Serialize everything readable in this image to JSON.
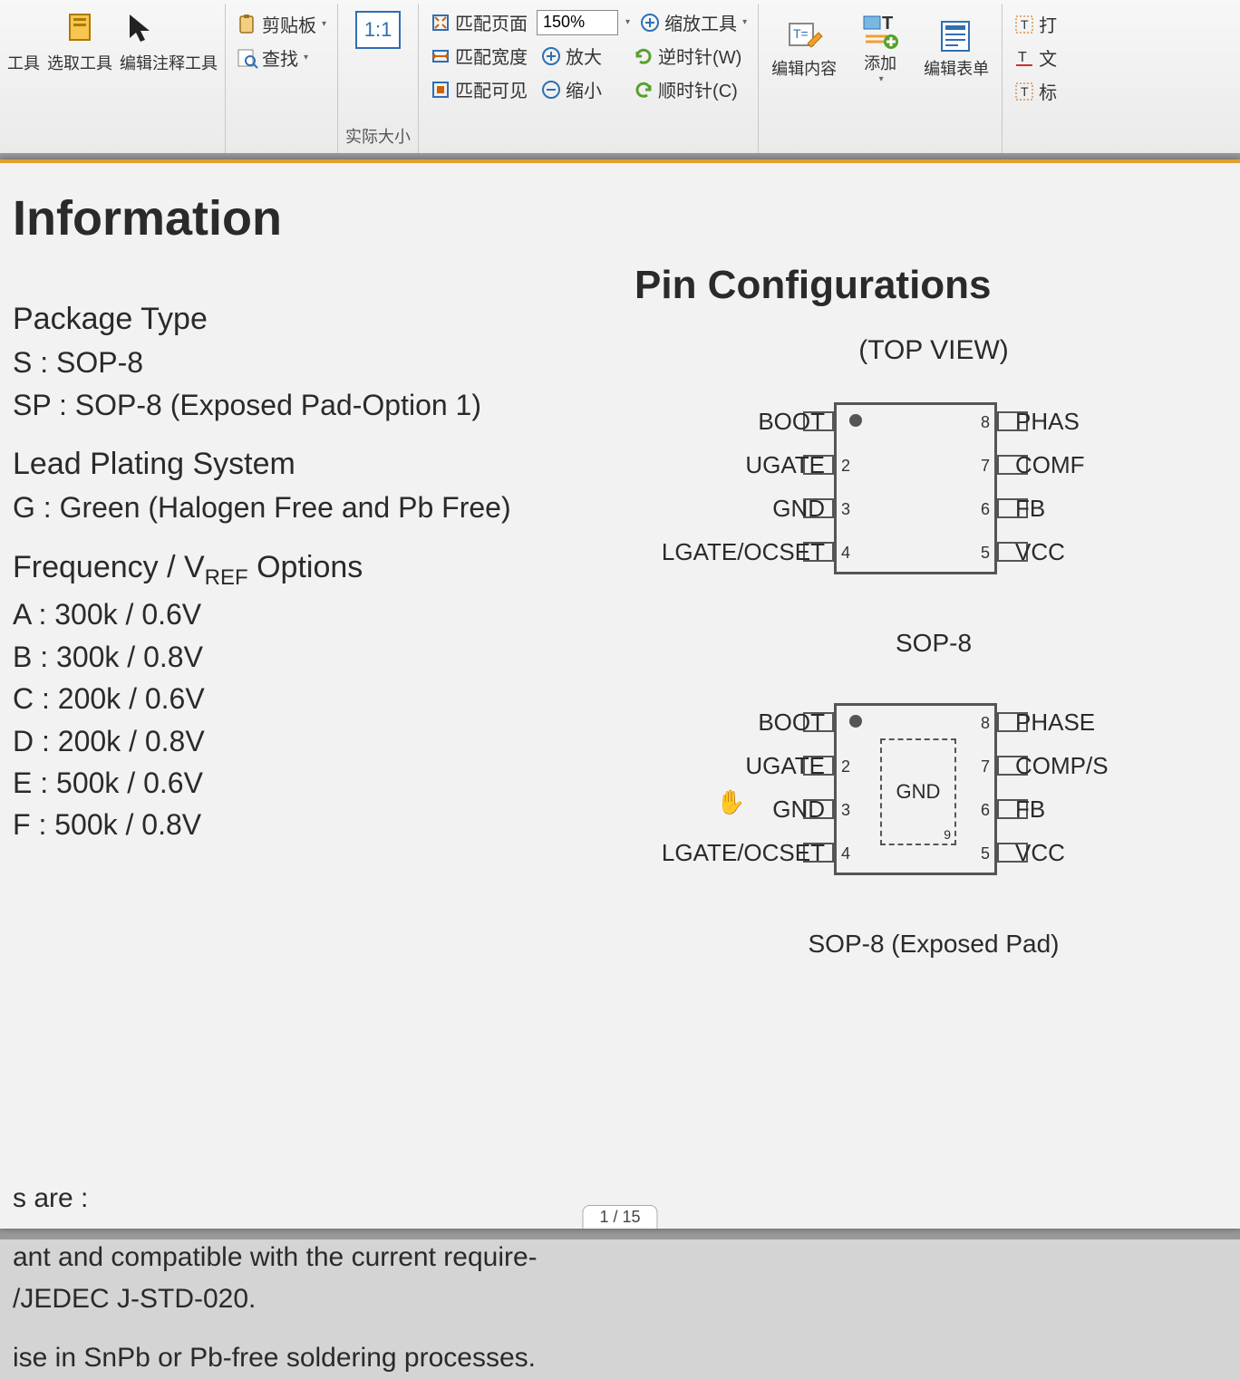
{
  "toolbar": {
    "group_tools_labels": [
      "工具",
      "选取工具",
      "编辑注释工具"
    ],
    "clipboard": {
      "label": "剪贴板",
      "find_label": "查找"
    },
    "actual_size_group": "实际大小",
    "ratio_label": "1:1",
    "fit_page_label": "匹配页面",
    "fit_width_label": "匹配宽度",
    "fit_visible_label": "匹配可见",
    "zoom_value": "150%",
    "zoom_tools_label": "缩放工具",
    "zoom_in_label": "放大",
    "zoom_out_label": "缩小",
    "rotate_ccw_label": "逆时针(W)",
    "rotate_cw_label": "顺时针(C)",
    "edit_content_label": "编辑内容",
    "add_label": "添加",
    "edit_form_label": "编辑表单",
    "right_items": [
      "打",
      "文",
      "标"
    ]
  },
  "doc": {
    "title": "Information",
    "package_type_hdr": "Package Type",
    "pkg_s": "S : SOP-8",
    "pkg_sp": "SP : SOP-8 (Exposed Pad-Option 1)",
    "lead_hdr": "Lead Plating System",
    "lead_g": "G : Green (Halogen Free and Pb Free)",
    "freq_hdr_a": "Frequency / V",
    "freq_hdr_sub": "REF",
    "freq_hdr_b": " Options",
    "opt_a": "A : 300k / 0.6V",
    "opt_b": "B : 300k / 0.8V",
    "opt_c": "C : 200k / 0.6V",
    "opt_d": "D : 200k / 0.8V",
    "opt_e": "E : 500k / 0.6V",
    "opt_f": "F : 500k / 0.8V",
    "foot1": "s are :",
    "foot2": "ant and compatible with the current require-",
    "foot3": "/JEDEC J-STD-020.",
    "foot4": "ise in SnPb or Pb-free soldering processes.",
    "pin_conf_title": "Pin Configurations",
    "top_view": "(TOP VIEW)",
    "chip1": {
      "left_labels": [
        "BOOT",
        "UGATE",
        "GND",
        "LGATE/OCSET"
      ],
      "right_labels": [
        "PHAS",
        "COMF",
        "FB",
        "VCC"
      ],
      "left_nums": [
        "",
        "2",
        "3",
        "4"
      ],
      "right_nums": [
        "8",
        "7",
        "6",
        "5"
      ],
      "caption": "SOP-8",
      "has_pad": false
    },
    "chip2": {
      "left_labels": [
        "BOOT",
        "UGATE",
        "GND",
        "LGATE/OCSET"
      ],
      "right_labels": [
        "PHASE",
        "COMP/S",
        "FB",
        "VCC"
      ],
      "left_nums": [
        "",
        "2",
        "3",
        "4"
      ],
      "right_nums": [
        "8",
        "7",
        "6",
        "5"
      ],
      "caption": "SOP-8 (Exposed Pad)",
      "pad_label": "GND",
      "pad_nine": "9",
      "has_pad": true
    }
  },
  "pagebar": {
    "text": "1 / 15"
  },
  "style": {
    "toolbar_bg_top": "#f7f7f7",
    "toolbar_bg_bot": "#eaeaea",
    "page_bg": "#f2f2f2",
    "orange_bar": "#e0a030",
    "chip_border": "#555555",
    "text_color": "#2a2a2a",
    "green_arrow": "#5aa02c",
    "blue_icon": "#2e6fb4"
  }
}
